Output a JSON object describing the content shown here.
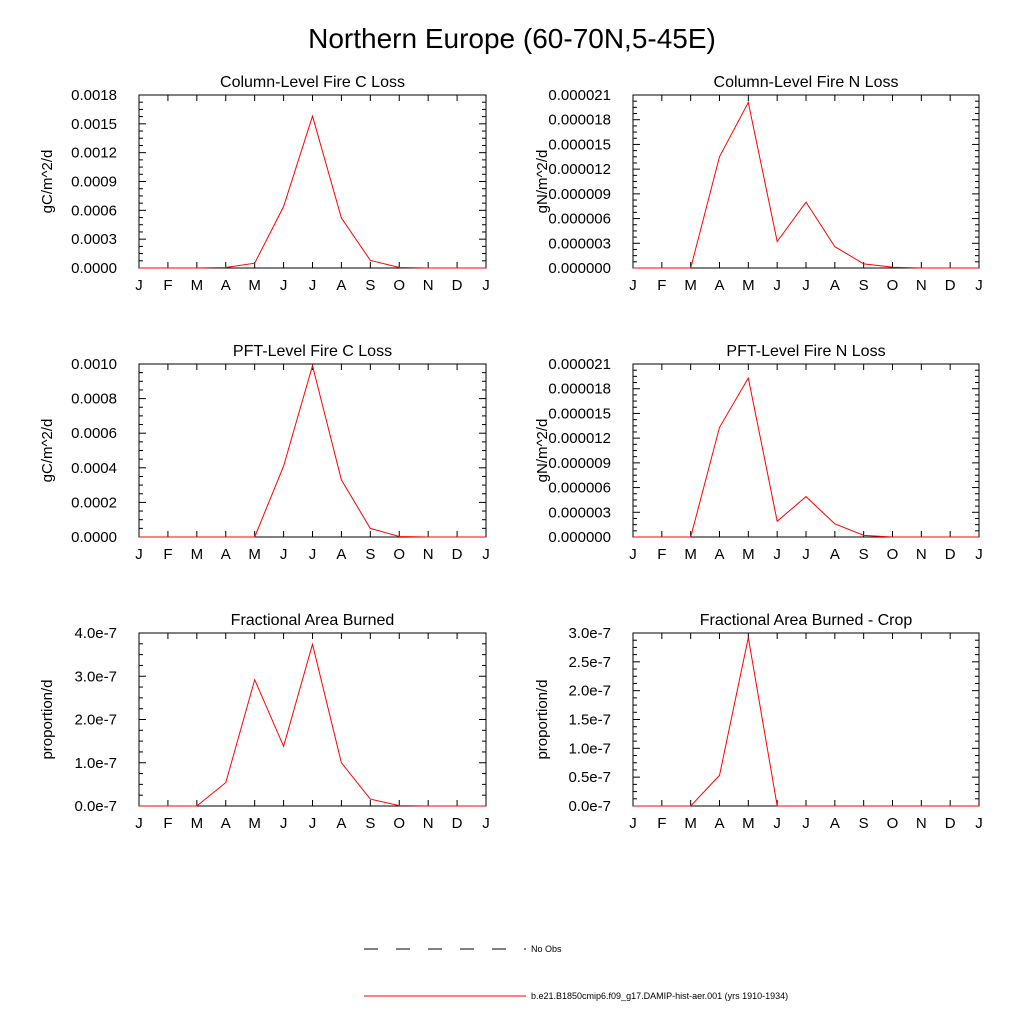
{
  "page": {
    "title": "Northern Europe (60-70N,5-45E)"
  },
  "legend": [
    {
      "label": "No Obs",
      "color": "#000000",
      "style": "dashed"
    },
    {
      "label": "b.e21.B1850cmip6.f09_g17.DAMIP-hist-aer.001 (yrs 1910-1934)",
      "color": "#ff0000",
      "style": "solid"
    }
  ],
  "chart_data": [
    {
      "type": "line",
      "title": "Column-Level Fire C Loss",
      "xlabel": "",
      "ylabel": "gC/m^2/d",
      "categories": [
        "J",
        "F",
        "M",
        "A",
        "M",
        "J",
        "J",
        "A",
        "S",
        "O",
        "N",
        "D",
        "J"
      ],
      "ylim": [
        0,
        0.0018
      ],
      "yticks": [
        "0.0000",
        "0.0003",
        "0.0006",
        "0.0009",
        "0.0012",
        "0.0015",
        "0.0018"
      ],
      "series": [
        {
          "color": "#ff0000",
          "values": [
            0,
            0,
            0,
            5e-06,
            5e-05,
            0.00064,
            0.00158,
            0.00052,
            8e-05,
            5e-06,
            0,
            0,
            0
          ]
        }
      ]
    },
    {
      "type": "line",
      "title": "Column-Level Fire N Loss",
      "xlabel": "",
      "ylabel": "gN/m^2/d",
      "categories": [
        "J",
        "F",
        "M",
        "A",
        "M",
        "J",
        "J",
        "A",
        "S",
        "O",
        "N",
        "D",
        "J"
      ],
      "ylim": [
        0,
        2.1e-05
      ],
      "yticks": [
        "0.000000",
        "0.000003",
        "0.000006",
        "0.000009",
        "0.000012",
        "0.000015",
        "0.000018",
        "0.000021"
      ],
      "series": [
        {
          "color": "#ff0000",
          "values": [
            0,
            0,
            0,
            1.35e-05,
            2.01e-05,
            3.2e-06,
            8e-06,
            2.6e-06,
            5e-07,
            1e-07,
            0,
            0,
            0
          ]
        }
      ]
    },
    {
      "type": "line",
      "title": "PFT-Level Fire C Loss",
      "xlabel": "",
      "ylabel": "gC/m^2/d",
      "categories": [
        "J",
        "F",
        "M",
        "A",
        "M",
        "J",
        "J",
        "A",
        "S",
        "O",
        "N",
        "D",
        "J"
      ],
      "ylim": [
        0,
        0.001
      ],
      "yticks": [
        "0.0000",
        "0.0002",
        "0.0004",
        "0.0006",
        "0.0008",
        "0.0010"
      ],
      "series": [
        {
          "color": "#ff0000",
          "values": [
            0,
            0,
            0,
            0,
            0,
            0.00041,
            0.00099,
            0.00033,
            5e-05,
            3e-06,
            0,
            0,
            0
          ]
        }
      ]
    },
    {
      "type": "line",
      "title": "PFT-Level Fire N Loss",
      "xlabel": "",
      "ylabel": "gN/m^2/d",
      "categories": [
        "J",
        "F",
        "M",
        "A",
        "M",
        "J",
        "J",
        "A",
        "S",
        "O",
        "N",
        "D",
        "J"
      ],
      "ylim": [
        0,
        2.1e-05
      ],
      "yticks": [
        "0.000000",
        "0.000003",
        "0.000006",
        "0.000009",
        "0.000012",
        "0.000015",
        "0.000018",
        "0.000021"
      ],
      "series": [
        {
          "color": "#ff0000",
          "values": [
            0,
            0,
            0,
            1.33e-05,
            1.93e-05,
            1.9e-06,
            4.9e-06,
            1.6e-06,
            2e-07,
            0,
            0,
            0,
            0
          ]
        }
      ]
    },
    {
      "type": "line",
      "title": "Fractional Area Burned",
      "xlabel": "",
      "ylabel": "proportion/d",
      "categories": [
        "J",
        "F",
        "M",
        "A",
        "M",
        "J",
        "J",
        "A",
        "S",
        "O",
        "N",
        "D",
        "J"
      ],
      "ylim": [
        0,
        4e-07
      ],
      "yticks": [
        "0.0e-7",
        "1.0e-7",
        "2.0e-7",
        "3.0e-7",
        "4.0e-7"
      ],
      "series": [
        {
          "color": "#ff0000",
          "values": [
            0,
            0,
            0,
            5.4e-08,
            2.92e-07,
            1.38e-07,
            3.74e-07,
            1e-07,
            1.6e-08,
            1e-09,
            0,
            0,
            0
          ]
        }
      ]
    },
    {
      "type": "line",
      "title": "Fractional Area Burned - Crop",
      "xlabel": "",
      "ylabel": "proportion/d",
      "categories": [
        "J",
        "F",
        "M",
        "A",
        "M",
        "J",
        "J",
        "A",
        "S",
        "O",
        "N",
        "D",
        "J"
      ],
      "ylim": [
        0,
        3e-07
      ],
      "yticks": [
        "0.0e-7",
        "0.5e-7",
        "1.0e-7",
        "1.5e-7",
        "2.0e-7",
        "2.5e-7",
        "3.0e-7"
      ],
      "series": [
        {
          "color": "#ff0000",
          "values": [
            0,
            0,
            0,
            5.3e-08,
            2.92e-07,
            0,
            0,
            0,
            0,
            0,
            0,
            0,
            0
          ]
        }
      ]
    }
  ]
}
